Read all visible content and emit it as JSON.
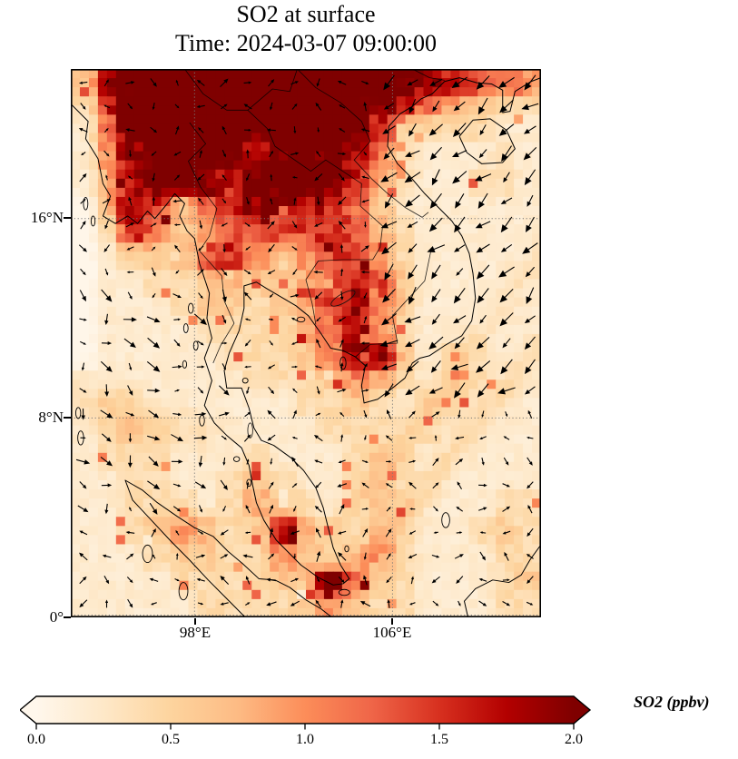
{
  "header": {
    "title": "SO2 at surface",
    "subtitle": "Time: 2024-03-07 09:00:00"
  },
  "axes": {
    "yticks": [
      {
        "label": "16°N",
        "lat": 16
      },
      {
        "label": "8°N",
        "lat": 8
      },
      {
        "label": "0°",
        "lat": 0
      }
    ],
    "xticks": [
      {
        "label": "98°E",
        "lon": 98
      },
      {
        "label": "106°E",
        "lon": 106
      }
    ],
    "gridline_lons": [
      98,
      106
    ],
    "gridline_lats": [
      0,
      8,
      16
    ],
    "gridline_color": "#777777"
  },
  "colorbar": {
    "label": "SO2 (ppbv)",
    "vmin": 0.0,
    "vmax": 2.0,
    "extend": "both",
    "colormap": "OrRd",
    "under_color": "#fff7ec",
    "over_color": "#7f0000",
    "ticks": [
      {
        "value": 0.0,
        "label": "0.0"
      },
      {
        "value": 0.5,
        "label": "0.5"
      },
      {
        "value": 1.0,
        "label": "1.0"
      },
      {
        "value": 1.5,
        "label": "1.5"
      },
      {
        "value": 2.0,
        "label": "2.0"
      }
    ],
    "colormap_stops": [
      [
        0.0,
        "#fff7ec"
      ],
      [
        0.125,
        "#fee8c8"
      ],
      [
        0.25,
        "#fdd49e"
      ],
      [
        0.375,
        "#fdbb84"
      ],
      [
        0.5,
        "#fc8d59"
      ],
      [
        0.625,
        "#ef6548"
      ],
      [
        0.75,
        "#d7301f"
      ],
      [
        0.875,
        "#b30000"
      ],
      [
        1.0,
        "#7f0000"
      ]
    ]
  },
  "chart_data": {
    "type": "heatmap",
    "title": "SO2 at surface",
    "subtitle": "Time: 2024-03-07 09:00:00",
    "variable": "SO2",
    "units": "ppbv",
    "colormap": "OrRd",
    "vmin": 0.0,
    "vmax": 2.0,
    "lon_range": [
      93,
      112
    ],
    "lat_range": [
      0,
      22
    ],
    "grid_deg": 1.0,
    "code_alphabet": "0123456789ABC",
    "value_per_code_step": 0.2,
    "so2_codes_rows_north_to_south": [
      "39CCCCCCCCCCCB98765",
      "28CCCCCCCCCCB864322",
      "16BCCCCBCCCB7222211",
      "159CCCB9BCB95211121",
      "148CCB8BCCB84211221",
      "04A7369A99863111111",
      "0296346777874211111",
      "0133378535774211111",
      "0112234334697311111",
      "0111233234796311111",
      "0111122224685211111",
      "011111222359A312111",
      "1111111222354212211",
      "1221111112232122111",
      "1232111111222221111",
      "1222111211123211111",
      "1122112321123211111",
      "1122212432123211122",
      "1123542394223211232",
      "1112332253234211122",
      "1111222233B53211123",
      "1111122223532211122"
    ],
    "plume_streaks": [
      {
        "from": [
          111.8,
          10.8
        ],
        "to": [
          104.0,
          1.0
        ],
        "amp": 0.22,
        "width_deg": 0.55
      },
      {
        "from": [
          109.5,
          10.8
        ],
        "to": [
          103.0,
          2.6
        ],
        "amp": 0.14,
        "width_deg": 0.5
      },
      {
        "from": [
          112.0,
          14.5
        ],
        "to": [
          107.5,
          9.0
        ],
        "amp": 0.12,
        "width_deg": 0.7
      },
      {
        "from": [
          93.0,
          9.0
        ],
        "to": [
          98.2,
          7.4
        ],
        "amp": 0.15,
        "width_deg": 0.8
      }
    ],
    "wind": {
      "spacing_deg": 0.95,
      "jitter": 1.0,
      "arrow_color": "#000000",
      "regions": [
        {
          "name": "northeast-monsoon-scs",
          "lon": [
            105.8,
            112
          ],
          "lat": [
            8.5,
            21.5
          ],
          "u": -0.85,
          "v": -0.85
        },
        {
          "name": "andaman-flow",
          "lon": [
            93,
            99.5
          ],
          "lat": [
            3.5,
            13
          ],
          "u": 0.4,
          "v": -0.35
        },
        {
          "name": "equatorial-weak",
          "lon": [
            99,
            107
          ],
          "lat": [
            0,
            8.5
          ],
          "u": -0.1,
          "v": 0.15
        }
      ]
    }
  },
  "geo": {
    "coastlines": [
      [
        [
          93.0,
          20.6
        ],
        [
          93.7,
          19.9
        ],
        [
          93.6,
          19.2
        ],
        [
          94.1,
          18.4
        ],
        [
          94.3,
          17.4
        ],
        [
          94.6,
          16.9
        ],
        [
          94.3,
          16.1
        ],
        [
          94.8,
          15.8
        ],
        [
          95.3,
          16.1
        ],
        [
          95.7,
          15.8
        ],
        [
          96.1,
          16.3
        ],
        [
          96.4,
          16.0
        ],
        [
          96.9,
          16.6
        ],
        [
          97.2,
          17.0
        ],
        [
          97.6,
          16.6
        ],
        [
          97.4,
          16.1
        ],
        [
          97.7,
          15.5
        ],
        [
          98.0,
          15.2
        ],
        [
          98.2,
          14.2
        ],
        [
          98.6,
          13.0
        ],
        [
          98.5,
          12.0
        ],
        [
          98.7,
          11.2
        ],
        [
          98.4,
          10.4
        ],
        [
          98.7,
          9.5
        ],
        [
          98.4,
          8.5
        ],
        [
          98.8,
          7.8
        ],
        [
          99.3,
          7.3
        ],
        [
          99.9,
          6.8
        ],
        [
          100.2,
          6.1
        ],
        [
          100.35,
          5.3
        ],
        [
          100.5,
          4.6
        ],
        [
          100.8,
          3.9
        ],
        [
          101.3,
          3.1
        ],
        [
          101.7,
          2.7
        ],
        [
          102.3,
          2.1
        ],
        [
          103.0,
          1.6
        ],
        [
          103.6,
          1.3
        ],
        [
          104.0,
          1.35
        ],
        [
          104.25,
          1.55
        ],
        [
          103.9,
          2.1
        ],
        [
          103.6,
          2.8
        ],
        [
          103.4,
          3.6
        ],
        [
          103.2,
          4.4
        ],
        [
          102.9,
          5.2
        ],
        [
          102.4,
          5.9
        ],
        [
          101.9,
          6.4
        ],
        [
          101.2,
          6.9
        ],
        [
          100.7,
          7.1
        ],
        [
          100.4,
          7.6
        ],
        [
          100.2,
          8.4
        ],
        [
          99.9,
          9.2
        ],
        [
          99.3,
          9.2
        ],
        [
          99.2,
          9.9
        ],
        [
          99.4,
          10.6
        ],
        [
          99.8,
          11.5
        ],
        [
          100.0,
          12.4
        ],
        [
          100.0,
          13.3
        ],
        [
          100.5,
          13.45
        ],
        [
          100.9,
          13.2
        ],
        [
          101.5,
          12.85
        ],
        [
          102.1,
          12.5
        ],
        [
          102.6,
          12.1
        ],
        [
          103.1,
          11.4
        ],
        [
          103.5,
          10.8
        ],
        [
          104.0,
          10.7
        ],
        [
          104.5,
          10.45
        ],
        [
          104.9,
          10.1
        ],
        [
          104.75,
          9.3
        ],
        [
          104.85,
          8.6
        ],
        [
          105.4,
          8.75
        ],
        [
          106.0,
          9.2
        ],
        [
          106.5,
          9.6
        ],
        [
          106.8,
          10.2
        ],
        [
          107.1,
          10.4
        ],
        [
          107.5,
          10.5
        ],
        [
          108.1,
          10.9
        ],
        [
          108.8,
          11.3
        ],
        [
          109.2,
          11.9
        ],
        [
          109.35,
          12.8
        ],
        [
          109.25,
          13.8
        ],
        [
          109.1,
          14.6
        ],
        [
          108.8,
          15.3
        ],
        [
          108.4,
          15.9
        ],
        [
          107.9,
          16.4
        ],
        [
          107.3,
          17.0
        ],
        [
          106.7,
          17.7
        ],
        [
          106.2,
          18.2
        ],
        [
          105.8,
          18.9
        ],
        [
          105.85,
          19.7
        ],
        [
          106.3,
          20.2
        ],
        [
          106.8,
          20.5
        ],
        [
          107.15,
          20.8
        ],
        [
          107.6,
          21.0
        ],
        [
          108.1,
          21.5
        ],
        [
          108.7,
          21.65
        ],
        [
          109.4,
          21.45
        ],
        [
          110.0,
          21.4
        ],
        [
          110.45,
          21.15
        ],
        [
          110.45,
          20.25
        ],
        [
          110.75,
          20.3
        ],
        [
          110.95,
          21.1
        ],
        [
          111.6,
          21.5
        ],
        [
          112.0,
          21.65
        ]
      ],
      [
        [
          100.05,
          0.0
        ],
        [
          99.3,
          0.75
        ],
        [
          98.55,
          1.5
        ],
        [
          97.8,
          2.3
        ],
        [
          97.05,
          3.05
        ],
        [
          96.3,
          3.85
        ],
        [
          95.5,
          4.7
        ],
        [
          95.2,
          5.5
        ],
        [
          95.9,
          5.1
        ],
        [
          96.5,
          4.6
        ],
        [
          97.3,
          4.05
        ],
        [
          98.0,
          3.6
        ],
        [
          98.75,
          3.25
        ],
        [
          99.35,
          2.65
        ],
        [
          99.95,
          2.15
        ],
        [
          100.6,
          1.55
        ],
        [
          101.25,
          1.5
        ],
        [
          101.85,
          1.2
        ],
        [
          102.5,
          0.7
        ],
        [
          103.1,
          0.35
        ],
        [
          103.55,
          0.0
        ]
      ],
      [
        [
          109.05,
          0.0
        ],
        [
          108.9,
          0.65
        ],
        [
          109.35,
          1.15
        ],
        [
          110.05,
          1.5
        ],
        [
          110.7,
          1.4
        ],
        [
          111.2,
          1.7
        ],
        [
          111.55,
          2.3
        ],
        [
          111.95,
          2.85
        ]
      ],
      [
        [
          108.7,
          19.3
        ],
        [
          109.25,
          19.95
        ],
        [
          109.95,
          20.0
        ],
        [
          110.6,
          19.55
        ],
        [
          110.95,
          18.8
        ],
        [
          110.45,
          18.25
        ],
        [
          109.6,
          18.2
        ],
        [
          109.0,
          18.65
        ],
        [
          108.7,
          19.3
        ]
      ]
    ],
    "borders": [
      [
        [
          108.1,
          21.55
        ],
        [
          107.5,
          21.65
        ],
        [
          106.9,
          21.95
        ],
        [
          106.5,
          22.0
        ]
      ],
      [
        [
          102.15,
          22.0
        ],
        [
          102.9,
          21.25
        ],
        [
          103.9,
          20.65
        ],
        [
          104.75,
          19.9
        ],
        [
          105.1,
          19.1
        ],
        [
          104.45,
          18.35
        ],
        [
          105.15,
          17.6
        ],
        [
          105.75,
          17.05
        ],
        [
          106.5,
          16.45
        ],
        [
          107.2,
          16.05
        ],
        [
          107.45,
          16.25
        ]
      ],
      [
        [
          97.8,
          19.85
        ],
        [
          98.45,
          19.0
        ],
        [
          97.75,
          18.3
        ],
        [
          98.25,
          17.25
        ],
        [
          98.9,
          16.4
        ],
        [
          98.6,
          15.3
        ],
        [
          98.2,
          14.7
        ],
        [
          99.1,
          13.7
        ],
        [
          99.2,
          12.7
        ],
        [
          99.6,
          11.8
        ],
        [
          99.05,
          10.9
        ],
        [
          98.75,
          10.2
        ]
      ],
      [
        [
          100.15,
          20.35
        ],
        [
          100.95,
          19.6
        ],
        [
          101.25,
          18.9
        ],
        [
          102.7,
          17.9
        ],
        [
          103.3,
          18.35
        ],
        [
          104.75,
          17.4
        ],
        [
          104.7,
          16.5
        ],
        [
          105.6,
          15.7
        ],
        [
          105.5,
          14.85
        ],
        [
          105.2,
          14.35
        ],
        [
          104.0,
          14.35
        ],
        [
          103.0,
          14.3
        ],
        [
          102.5,
          13.55
        ],
        [
          102.75,
          12.6
        ],
        [
          102.9,
          11.75
        ]
      ],
      [
        [
          107.55,
          14.7
        ],
        [
          107.3,
          13.5
        ],
        [
          106.0,
          12.1
        ],
        [
          106.2,
          11.0
        ],
        [
          105.1,
          10.95
        ],
        [
          104.5,
          10.45
        ]
      ],
      [
        [
          97.6,
          22.0
        ],
        [
          98.35,
          21.0
        ],
        [
          99.3,
          20.35
        ],
        [
          100.15,
          20.35
        ],
        [
          101.15,
          21.2
        ],
        [
          101.85,
          21.1
        ],
        [
          102.15,
          22.0
        ]
      ]
    ],
    "islands": [
      [
        93.4,
        7.2,
        0.12,
        0.28
      ],
      [
        93.3,
        8.2,
        0.1,
        0.22
      ],
      [
        93.6,
        16.6,
        0.09,
        0.25
      ],
      [
        93.9,
        15.9,
        0.08,
        0.2
      ],
      [
        97.85,
        12.4,
        0.1,
        0.2
      ],
      [
        97.65,
        11.6,
        0.09,
        0.18
      ],
      [
        98.05,
        10.9,
        0.09,
        0.18
      ],
      [
        97.6,
        10.15,
        0.08,
        0.15
      ],
      [
        98.3,
        7.9,
        0.1,
        0.22
      ],
      [
        99.7,
        6.35,
        0.12,
        0.1
      ],
      [
        100.2,
        5.4,
        0.09,
        0.14
      ],
      [
        104.0,
        10.2,
        0.12,
        0.25
      ],
      [
        100.05,
        9.5,
        0.11,
        0.1
      ],
      [
        102.3,
        11.95,
        0.16,
        0.1
      ],
      [
        96.1,
        2.55,
        0.2,
        0.35
      ],
      [
        97.55,
        1.05,
        0.18,
        0.35
      ],
      [
        108.15,
        3.9,
        0.16,
        0.3
      ],
      [
        104.05,
        1.0,
        0.22,
        0.12
      ],
      [
        104.15,
        2.75,
        0.08,
        0.12
      ]
    ],
    "lakes": [
      [
        104.0,
        12.8,
        0.55,
        0.18,
        -30
      ],
      [
        100.25,
        7.5,
        0.1,
        0.3,
        0
      ]
    ]
  }
}
